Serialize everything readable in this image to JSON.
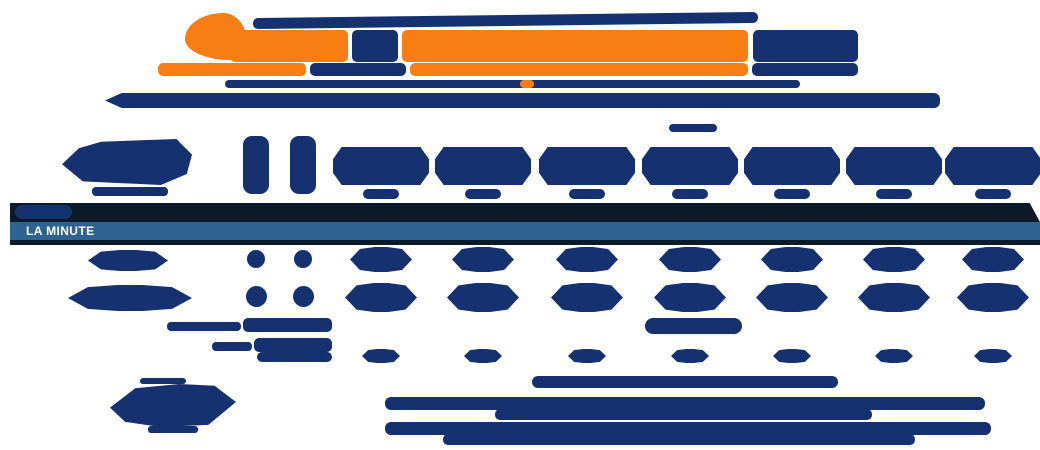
{
  "sheet": {
    "section_label": "LA MINUTE"
  },
  "colors": {
    "navy": "#16316f",
    "orange": "#f87d12",
    "steel_blue": "#2e6391",
    "dark": "#0d1b28",
    "background": "#ffffff"
  },
  "table": {
    "column_count": 7,
    "narrow_column_count": 2,
    "value_row_count": 3
  }
}
